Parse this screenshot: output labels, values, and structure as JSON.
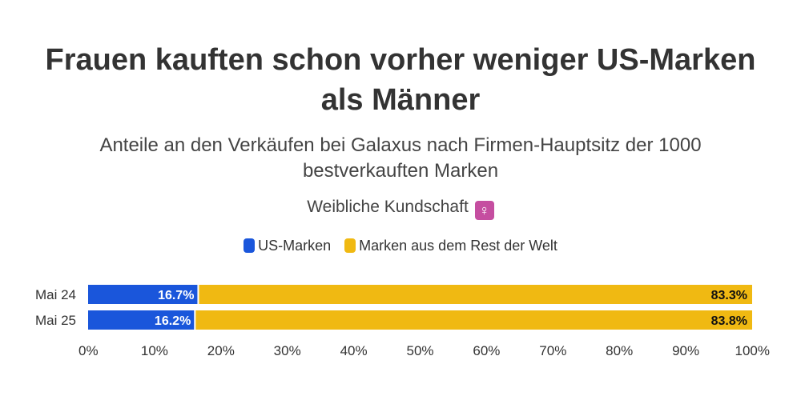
{
  "chart_data": {
    "type": "bar",
    "orientation": "horizontal",
    "stacked": true,
    "title": "Frauen kauften schon vorher weniger US-Marken als Männer",
    "subtitle": "Anteile an den Verkäufen bei Galaxus nach Firmen-Hauptsitz der 1000 bestverkauften Marken",
    "note": "Weibliche Kundschaft",
    "note_icon": "female-sign-icon",
    "categories": [
      "Mai 24",
      "Mai 25"
    ],
    "series": [
      {
        "name": "US-Marken",
        "values": [
          16.7,
          16.2
        ],
        "labels": [
          "16.7%",
          "16.2%"
        ],
        "color": "#1a56db",
        "label_color": "#ffffff"
      },
      {
        "name": "Marken aus dem Rest der Welt",
        "values": [
          83.3,
          83.8
        ],
        "labels": [
          "83.3%",
          "83.8%"
        ],
        "color": "#f0b912",
        "label_color": "#111111"
      }
    ],
    "xlim": [
      0,
      100
    ],
    "xticks": [
      "0%",
      "10%",
      "20%",
      "30%",
      "40%",
      "50%",
      "60%",
      "70%",
      "80%",
      "90%",
      "100%"
    ],
    "legend_position": "top-center",
    "grid": false
  }
}
